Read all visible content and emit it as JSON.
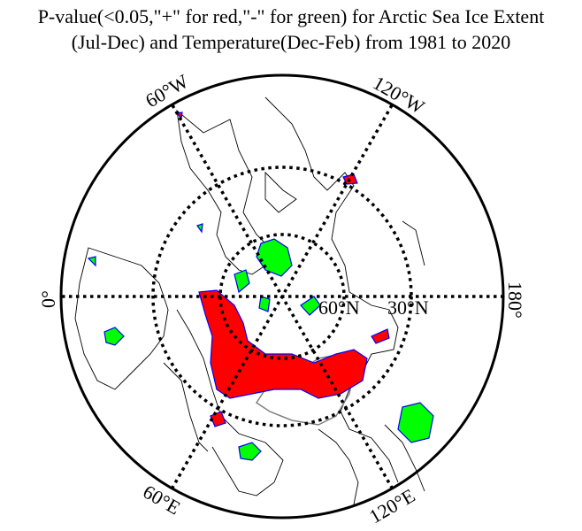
{
  "title": {
    "line1": "P-value(<0.05,\"+\" for red,\"-\" for green) for Arctic Sea Ice Extent",
    "line2": "(Jul-Dec) and Temperature(Dec-Feb) from 1981 to 2020"
  },
  "map": {
    "projection": "north polar stereographic",
    "longitude_labels": {
      "lon_60w": "60°W",
      "lon_120w": "120°W",
      "lon_0": "0°",
      "lon_180": "180°",
      "lon_60e": "60°E",
      "lon_120e": "120°E"
    },
    "latitude_labels": {
      "lat_60n": "60°N",
      "lat_30n": "30°N"
    },
    "colors": {
      "positive_significant": "#ff0000",
      "negative_significant": "#00ff00",
      "contour": "#0000ff",
      "coastline": "#000000",
      "china_border": "#808080"
    }
  }
}
